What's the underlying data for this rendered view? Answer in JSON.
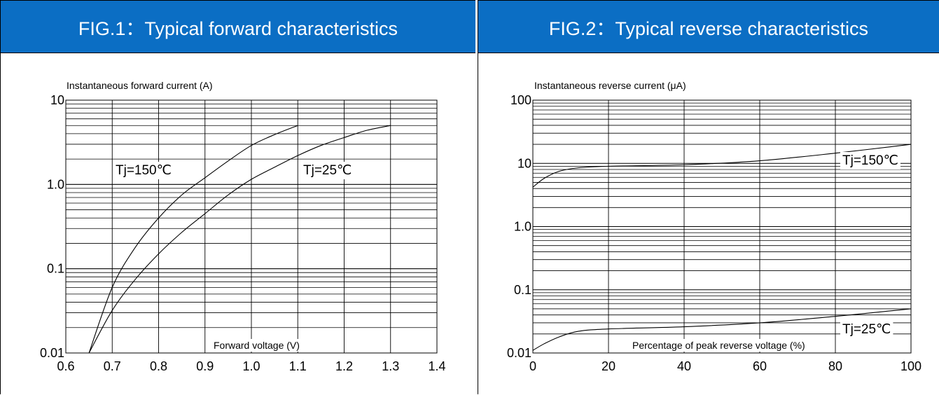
{
  "charts": [
    {
      "header": "FIG.1：Typical forward characteristics",
      "chart_data": {
        "type": "line",
        "title": "FIG.1：Typical forward characteristics",
        "xlabel": "Forward voltage (V)",
        "ylabel": "Instantaneous forward current (A)",
        "xscale": "linear",
        "yscale": "log",
        "xlim": [
          0.6,
          1.4
        ],
        "ylim": [
          0.01,
          10
        ],
        "xticks": [
          0.6,
          0.7,
          0.8,
          0.9,
          1.0,
          1.1,
          1.2,
          1.3,
          1.4
        ],
        "xtick_labels": [
          "0.6",
          "0.7",
          "0.8",
          "0.9",
          "1.0",
          "1.1",
          "1.2",
          "1.3",
          "1.4"
        ],
        "yticks": [
          0.01,
          0.1,
          1,
          10
        ],
        "ytick_labels": [
          "0.01",
          "0.1",
          "1.0",
          "10"
        ],
        "grid": true,
        "series": [
          {
            "name": "Tj=150℃",
            "points": [
              [
                0.65,
                0.01
              ],
              [
                0.7,
                0.06
              ],
              [
                0.75,
                0.18
              ],
              [
                0.8,
                0.4
              ],
              [
                0.85,
                0.75
              ],
              [
                0.9,
                1.2
              ],
              [
                0.95,
                1.9
              ],
              [
                1.0,
                2.9
              ],
              [
                1.05,
                3.9
              ],
              [
                1.1,
                5.0
              ]
            ]
          },
          {
            "name": "Tj=25℃",
            "points": [
              [
                0.65,
                0.01
              ],
              [
                0.7,
                0.032
              ],
              [
                0.75,
                0.075
              ],
              [
                0.8,
                0.15
              ],
              [
                0.85,
                0.27
              ],
              [
                0.9,
                0.45
              ],
              [
                0.95,
                0.75
              ],
              [
                1.0,
                1.15
              ],
              [
                1.05,
                1.6
              ],
              [
                1.1,
                2.2
              ],
              [
                1.15,
                2.9
              ],
              [
                1.2,
                3.6
              ],
              [
                1.25,
                4.4
              ],
              [
                1.3,
                5.0
              ]
            ]
          }
        ]
      }
    },
    {
      "header": "FIG.2：Typical reverse characteristics",
      "chart_data": {
        "type": "line",
        "title": "FIG.2：Typical reverse characteristics",
        "xlabel": "Percentage of peak reverse voltage (%)",
        "ylabel": "Instantaneous reverse current (μA)",
        "xscale": "linear",
        "yscale": "log",
        "xlim": [
          0,
          100
        ],
        "ylim": [
          0.01,
          100
        ],
        "xticks": [
          0,
          20,
          40,
          60,
          80,
          100
        ],
        "xtick_labels": [
          "0",
          "20",
          "40",
          "60",
          "80",
          "100"
        ],
        "yticks": [
          0.01,
          0.1,
          1,
          10,
          100
        ],
        "ytick_labels": [
          "0.01",
          "0.1",
          "1.0",
          "10",
          "100"
        ],
        "grid": true,
        "series": [
          {
            "name": "Tj=150℃",
            "points": [
              [
                0,
                4.2
              ],
              [
                3,
                5.8
              ],
              [
                7,
                7.5
              ],
              [
                12,
                8.5
              ],
              [
                20,
                9.0
              ],
              [
                40,
                9.5
              ],
              [
                60,
                11.0
              ],
              [
                80,
                14.5
              ],
              [
                100,
                20.0
              ]
            ]
          },
          {
            "name": "Tj=25℃",
            "points": [
              [
                0,
                0.011
              ],
              [
                3,
                0.014
              ],
              [
                7,
                0.018
              ],
              [
                12,
                0.022
              ],
              [
                20,
                0.024
              ],
              [
                40,
                0.026
              ],
              [
                60,
                0.03
              ],
              [
                80,
                0.038
              ],
              [
                100,
                0.05
              ]
            ]
          }
        ]
      }
    }
  ]
}
